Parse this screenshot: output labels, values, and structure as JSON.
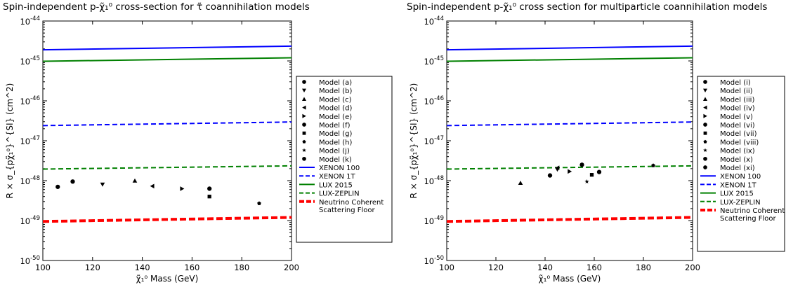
{
  "chart_data": [
    {
      "type": "scatter",
      "title": "Spin-independent p-χ̃₁⁰ cross-section for τ̃ coannihilation models",
      "xlabel": "χ̃₁⁰ Mass (GeV)",
      "ylabel": "R × σ_{pχ̃₁⁰}^{SI} (cm^2)",
      "xlim": [
        100,
        200
      ],
      "ylim": [
        1e-50,
        1e-44
      ],
      "yscale": "log",
      "x_ticks": [
        "100",
        "120",
        "140",
        "160",
        "180",
        "200"
      ],
      "y_ticks": [
        {
          "base": "10",
          "exp": "-50"
        },
        {
          "base": "10",
          "exp": "-49"
        },
        {
          "base": "10",
          "exp": "-48"
        },
        {
          "base": "10",
          "exp": "-47"
        },
        {
          "base": "10",
          "exp": "-46"
        },
        {
          "base": "10",
          "exp": "-45"
        },
        {
          "base": "10",
          "exp": "-44"
        }
      ],
      "legend_position": "outside-right",
      "points": [
        {
          "name": "Model (a)",
          "marker": "circle",
          "x": 106,
          "y": 7e-49
        },
        {
          "name": "Model (b)",
          "marker": "triangle-down",
          "x": 124,
          "y": 8e-49
        },
        {
          "name": "Model (c)",
          "marker": "triangle-up",
          "x": 137,
          "y": 1e-48
        },
        {
          "name": "Model (d)",
          "marker": "triangle-left",
          "x": 144,
          "y": 7.3e-49
        },
        {
          "name": "Model (e)",
          "marker": "triangle-right",
          "x": 156,
          "y": 6.3e-49
        },
        {
          "name": "Model (f)",
          "marker": "circle",
          "x": 167,
          "y": 6.3e-49
        },
        {
          "name": "Model (g)",
          "marker": "square",
          "x": 167,
          "y": 4e-49
        },
        {
          "name": "Model (h)",
          "marker": "pentagon",
          "x": 187,
          "y": 2.7e-49
        },
        {
          "name": "Model (j)",
          "marker": "star",
          "x": null,
          "y": null
        },
        {
          "name": "Model (k)",
          "marker": "circle",
          "x": 112,
          "y": 9.5e-49
        }
      ],
      "limits": [
        {
          "name": "XENON 100",
          "style": "solid",
          "color": "#0000ff",
          "y_at_100": 1.9e-45,
          "y_at_200": 2.35e-45
        },
        {
          "name": "XENON 1T",
          "style": "dashed",
          "color": "#0000ff",
          "y_at_100": 2.4e-47,
          "y_at_200": 2.95e-47
        },
        {
          "name": "LUX 2015",
          "style": "solid",
          "color": "#008000",
          "y_at_100": 9.8e-46,
          "y_at_200": 1.2e-45
        },
        {
          "name": "LUX-ZEPLIN",
          "style": "dashed",
          "color": "#008000",
          "y_at_100": 1.95e-48,
          "y_at_200": 2.35e-48
        },
        {
          "name": "Neutrino Coherent\nScattering Floor",
          "style": "thick-dashed",
          "color": "#ff0000",
          "y_at_100": 9.5e-50,
          "y_at_200": 1.2e-49
        }
      ]
    },
    {
      "type": "scatter",
      "title": "Spin-independent p-χ̃₁⁰ cross section for multiparticle coannihilation models",
      "xlabel": "χ̃₁⁰ Mass (GeV)",
      "ylabel": "R × σ_{pχ̃₁⁰}^{SI} (cm^2)",
      "xlim": [
        100,
        200
      ],
      "ylim": [
        1e-50,
        1e-44
      ],
      "yscale": "log",
      "x_ticks": [
        "100",
        "120",
        "140",
        "160",
        "180",
        "200"
      ],
      "y_ticks": [
        {
          "base": "10",
          "exp": "-50"
        },
        {
          "base": "10",
          "exp": "-49"
        },
        {
          "base": "10",
          "exp": "-48"
        },
        {
          "base": "10",
          "exp": "-47"
        },
        {
          "base": "10",
          "exp": "-46"
        },
        {
          "base": "10",
          "exp": "-45"
        },
        {
          "base": "10",
          "exp": "-44"
        }
      ],
      "legend_position": "outside-right",
      "points": [
        {
          "name": "Model (i)",
          "marker": "circle",
          "x": 142,
          "y": 1.35e-48
        },
        {
          "name": "Model (ii)",
          "marker": "triangle-down",
          "x": 145,
          "y": 1.9e-48
        },
        {
          "name": "Model (iii)",
          "marker": "triangle-up",
          "x": 130,
          "y": 8.8e-49
        },
        {
          "name": "Model (iv)",
          "marker": "triangle-left",
          "x": 145,
          "y": 2.1e-48
        },
        {
          "name": "Model (v)",
          "marker": "triangle-right",
          "x": 150,
          "y": 1.7e-48
        },
        {
          "name": "Model (vi)",
          "marker": "circle",
          "x": 155,
          "y": 2.5e-48
        },
        {
          "name": "Model (vii)",
          "marker": "square",
          "x": 159,
          "y": 1.4e-48
        },
        {
          "name": "Model (viii)",
          "marker": "pentagon",
          "x": 184,
          "y": 2.4e-48
        },
        {
          "name": "Model (ix)",
          "marker": "star",
          "x": 157,
          "y": 9.5e-49
        },
        {
          "name": "Model (x)",
          "marker": "circle",
          "x": 162,
          "y": 1.65e-48
        },
        {
          "name": "Model (xi)",
          "marker": "circle",
          "x": null,
          "y": null
        }
      ],
      "limits": [
        {
          "name": "XENON 100",
          "style": "solid",
          "color": "#0000ff",
          "y_at_100": 1.9e-45,
          "y_at_200": 2.35e-45
        },
        {
          "name": "XENON 1T",
          "style": "dashed",
          "color": "#0000ff",
          "y_at_100": 2.4e-47,
          "y_at_200": 2.95e-47
        },
        {
          "name": "LUX 2015",
          "style": "solid",
          "color": "#008000",
          "y_at_100": 9.8e-46,
          "y_at_200": 1.2e-45
        },
        {
          "name": "LUX-ZEPLIN",
          "style": "dashed",
          "color": "#008000",
          "y_at_100": 1.95e-48,
          "y_at_200": 2.35e-48
        },
        {
          "name": "Neutrino Coherent\nScattering Floor",
          "style": "thick-dashed",
          "color": "#ff0000",
          "y_at_100": 9.5e-50,
          "y_at_200": 1.2e-49
        }
      ]
    }
  ]
}
